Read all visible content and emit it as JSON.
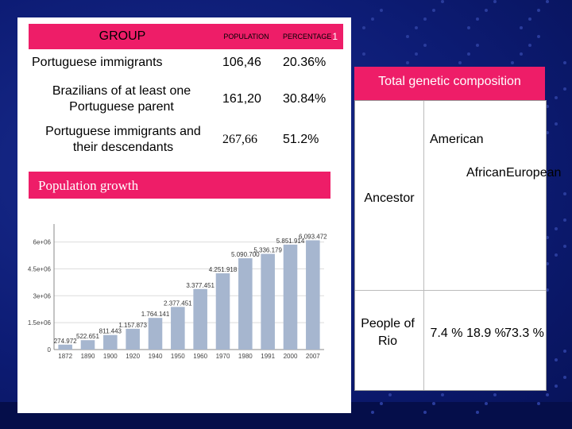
{
  "table": {
    "headers": [
      "GROUP",
      "POPULATION",
      "PERCENTAGE"
    ],
    "header_marker": "1",
    "rows": [
      {
        "group": "Portuguese immigrants",
        "population": "106,46",
        "percentage": "20.36%"
      },
      {
        "group": "Brazilians of at least one Portuguese parent",
        "population": "161,20",
        "percentage": "30.84%"
      },
      {
        "group": "Portuguese immigrants and their descendants",
        "population": "267,66",
        "percentage": "51.2%"
      }
    ]
  },
  "growth_banner": "Population growth",
  "genetic": {
    "title": "Total genetic composition",
    "row_label_1": "Ancestor",
    "row_label_2": "People of Rio",
    "columns": [
      "American",
      "African",
      "European"
    ],
    "values": [
      "7.4 %",
      "18.9 %",
      "73.3 %"
    ]
  },
  "chart_data": {
    "type": "bar",
    "categories": [
      "1872",
      "1890",
      "1900",
      "1920",
      "1940",
      "1950",
      "1960",
      "1970",
      "1980",
      "1991",
      "2000",
      "2007"
    ],
    "values": [
      274972,
      522651,
      811443,
      1157873,
      1764141,
      2377451,
      3377451,
      4251918,
      5090700,
      5336179,
      5851914,
      6093472
    ],
    "value_labels": [
      "274.972",
      "522.651",
      "811.443",
      "1.157.873",
      "1.764.141",
      "2.377.451",
      "3.377.451",
      "4.251.918",
      "5.090.700",
      "5.336.179",
      "5.851.914",
      "6.093.472"
    ],
    "y_ticks": [
      0,
      1500000,
      3000000,
      4500000,
      6000000
    ],
    "y_tick_labels": [
      "0",
      "1.5e+06",
      "3e+06",
      "4.5e+06",
      "6e+06"
    ],
    "ylim": [
      0,
      7000000
    ],
    "bar_color": "#a6b6cf",
    "grid": true
  },
  "colors": {
    "accent": "#ee1d68",
    "background": "#0d1c75"
  }
}
